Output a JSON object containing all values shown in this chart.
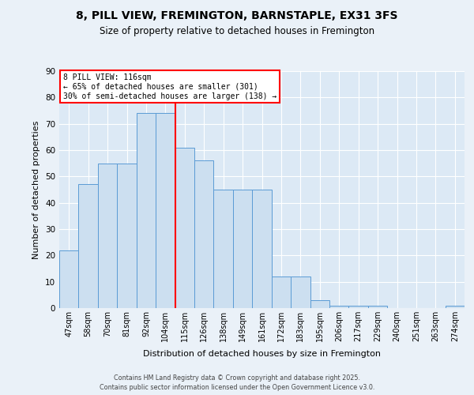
{
  "title1": "8, PILL VIEW, FREMINGTON, BARNSTAPLE, EX31 3FS",
  "title2": "Size of property relative to detached houses in Fremington",
  "xlabel": "Distribution of detached houses by size in Fremington",
  "ylabel": "Number of detached properties",
  "categories": [
    "47sqm",
    "58sqm",
    "70sqm",
    "81sqm",
    "92sqm",
    "104sqm",
    "115sqm",
    "126sqm",
    "138sqm",
    "149sqm",
    "161sqm",
    "172sqm",
    "183sqm",
    "195sqm",
    "206sqm",
    "217sqm",
    "229sqm",
    "240sqm",
    "251sqm",
    "263sqm",
    "274sqm"
  ],
  "bar_heights": [
    22,
    47,
    55,
    55,
    74,
    74,
    61,
    56,
    45,
    45,
    45,
    12,
    12,
    3,
    1,
    1,
    1,
    0,
    0,
    0,
    1
  ],
  "bar_color": "#ccdff0",
  "bar_edge_color": "#5b9bd5",
  "ref_line_color": "red",
  "ref_line_x": 6,
  "annotation_text": "8 PILL VIEW: 116sqm\n← 65% of detached houses are smaller (301)\n30% of semi-detached houses are larger (138) →",
  "footer": "Contains HM Land Registry data © Crown copyright and database right 2025.\nContains public sector information licensed under the Open Government Licence v3.0.",
  "ylim": [
    0,
    90
  ],
  "yticks": [
    0,
    10,
    20,
    30,
    40,
    50,
    60,
    70,
    80,
    90
  ],
  "background_color": "#eaf1f8",
  "plot_bg_color": "#dce9f5",
  "title1_fontsize": 10,
  "title2_fontsize": 8.5,
  "ylabel_fontsize": 8,
  "xlabel_fontsize": 8
}
